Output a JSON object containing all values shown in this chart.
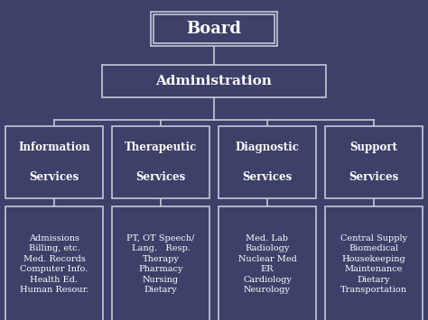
{
  "bg_color": "#3d4068",
  "box_edge_color": "#c8c8d8",
  "text_color": "#ffffff",
  "title": "Board",
  "level1": "Administration",
  "level2": [
    "Information\n\nServices",
    "Therapeutic\n\nServices",
    "Diagnostic\n\nServices",
    "Support\n\nServices"
  ],
  "level3": [
    "Admissions\nBilling, etc.\nMed. Records\nComputer Info.\nHealth Ed.\nHuman Resour.",
    "PT, OT Speech/\nLang.   Resp.\nTherapy\nPharmacy\nNursing\nDietary",
    "Med. Lab\nRadiology\nNuclear Med\nER\nCardiology\nNeurology",
    "Central Supply\nBiomedical\nHousekeeping\nMaintenance\nDietary\nTransportation"
  ],
  "lw": 1.2
}
